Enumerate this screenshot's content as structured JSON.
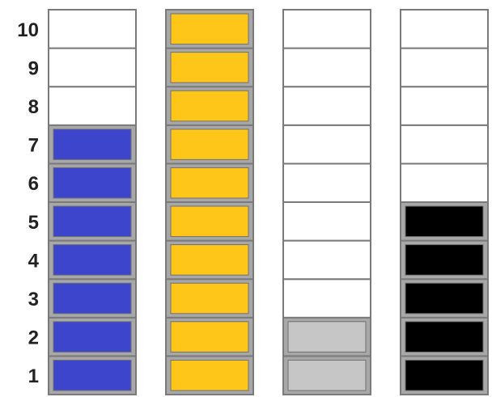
{
  "chart_data": {
    "type": "bar",
    "y_tick_labels": [
      "1",
      "2",
      "3",
      "4",
      "5",
      "6",
      "7",
      "8",
      "9",
      "10"
    ],
    "ylim": [
      0,
      10
    ],
    "series": [
      {
        "values": [
          7
        ],
        "color": "#3d45cc"
      },
      {
        "values": [
          10
        ],
        "color": "#ffc61a"
      },
      {
        "values": [
          2
        ],
        "color": "#c6c6c6"
      },
      {
        "values": [
          5
        ],
        "color": "#000000"
      }
    ],
    "empty_cell_color": "#ffffff",
    "grid": true
  }
}
